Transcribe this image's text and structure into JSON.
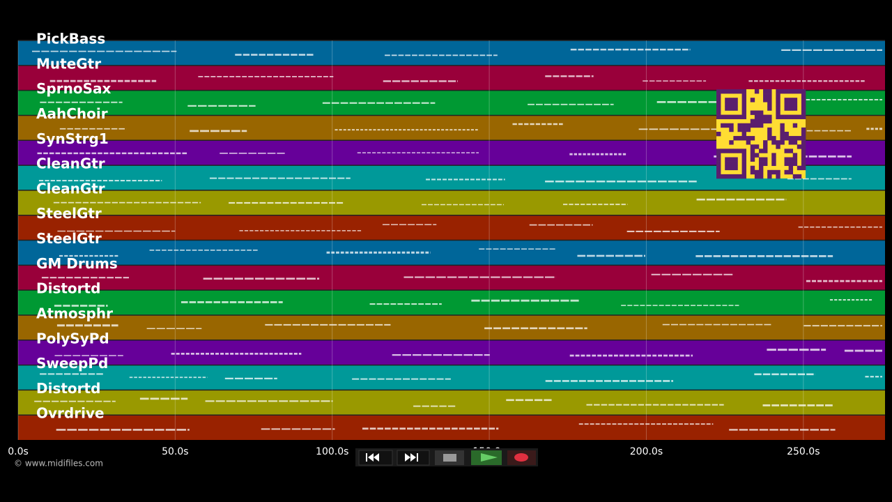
{
  "tracks": [
    {
      "name": "PickBass",
      "color": "#006699"
    },
    {
      "name": "MuteGtr",
      "color": "#99003a"
    },
    {
      "name": "SprnoSax",
      "color": "#009933"
    },
    {
      "name": "AahChoir",
      "color": "#996600"
    },
    {
      "name": "SynStrg1",
      "color": "#660099"
    },
    {
      "name": "CleanGtr",
      "color": "#009999"
    },
    {
      "name": "CleanGtr",
      "color": "#999900"
    },
    {
      "name": "SteelGtr",
      "color": "#992200"
    },
    {
      "name": "SteelGtr",
      "color": "#006699"
    },
    {
      "name": "GM Drums",
      "color": "#99003a"
    },
    {
      "name": "Distortd",
      "color": "#009933"
    },
    {
      "name": "Atmosphr",
      "color": "#996600"
    },
    {
      "name": "PolySyPd",
      "color": "#660099"
    },
    {
      "name": "SweepPd",
      "color": "#009999"
    },
    {
      "name": "Distortd",
      "color": "#999900"
    },
    {
      "name": "Ovrdrive",
      "color": "#992200"
    }
  ],
  "timeline": {
    "xlim": [
      0,
      276
    ],
    "xticks": [
      {
        "value": 0,
        "label": "0.0s"
      },
      {
        "value": 50,
        "label": "50.0s"
      },
      {
        "value": 100,
        "label": "100.0s"
      },
      {
        "value": 150,
        "label": "150.0s"
      },
      {
        "value": 200,
        "label": "200.0s"
      },
      {
        "value": 250,
        "label": "250.0s"
      }
    ]
  },
  "footer": {
    "copyright": "© www.midifiles.com"
  }
}
